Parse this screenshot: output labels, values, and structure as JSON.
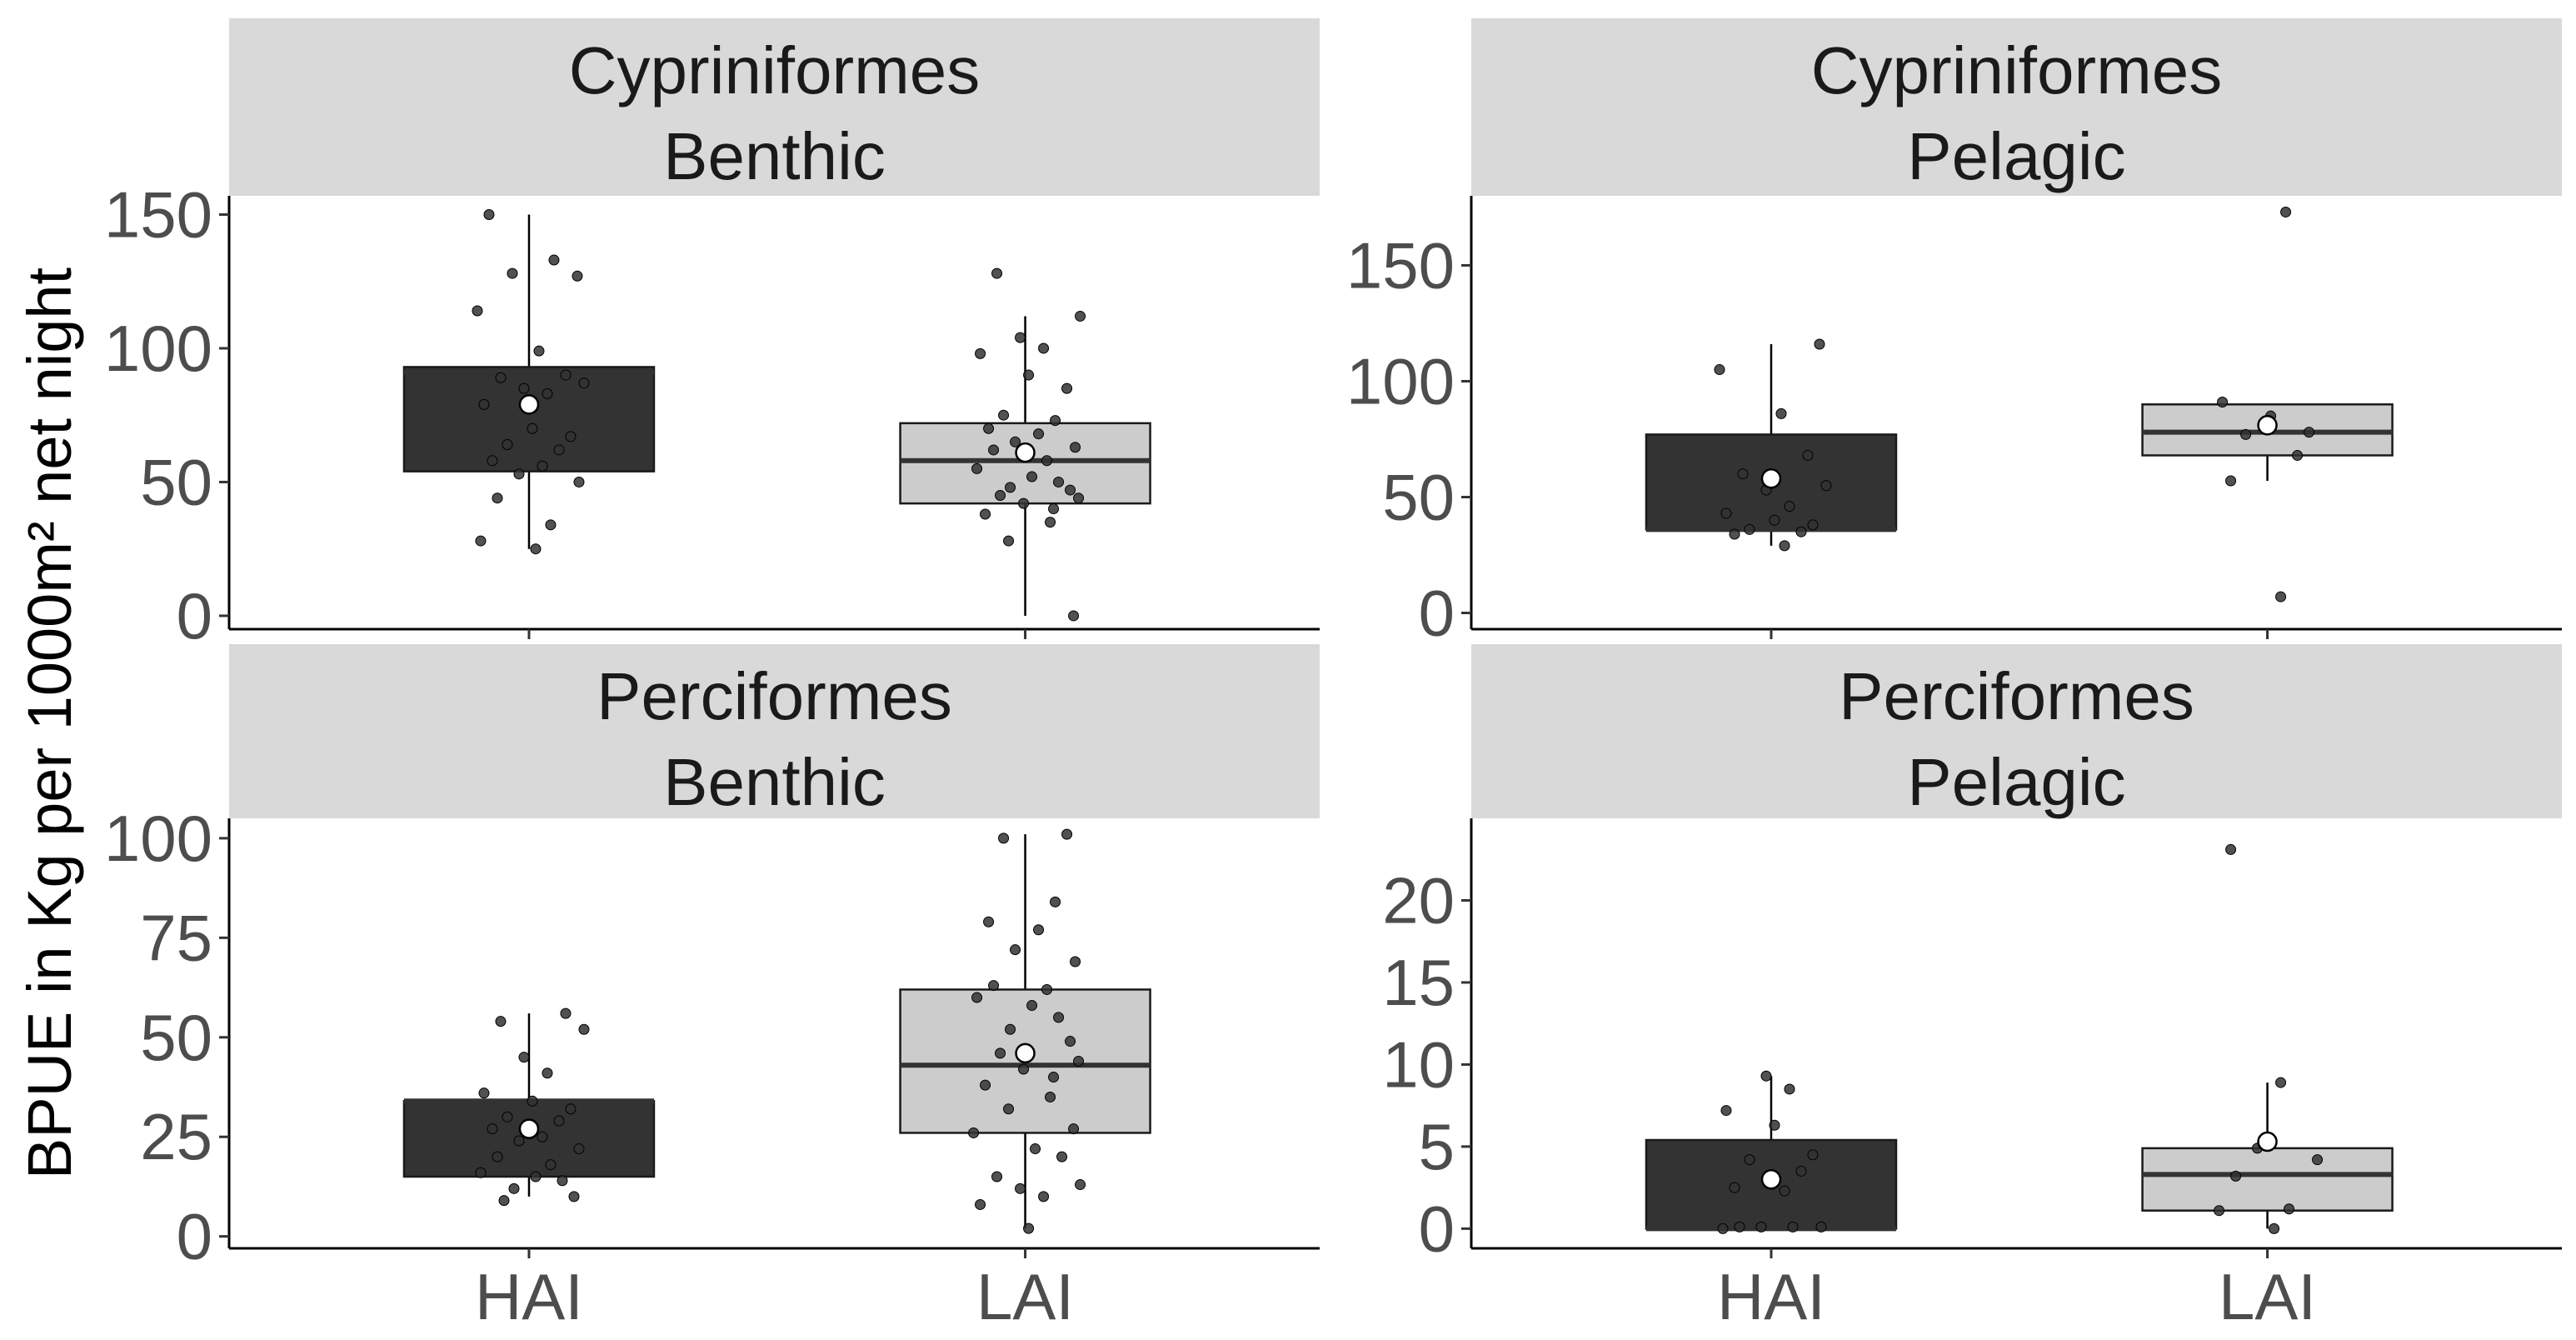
{
  "chart_data": {
    "type": "boxplot",
    "layout": "facet grid 2x2",
    "ylabel": "BPUE in Kg per 1000m² net night",
    "xlabel": "",
    "categories": [
      "HAI",
      "LAI"
    ],
    "fill_colors": {
      "HAI": "#333333",
      "LAI": "#cccccc"
    },
    "mean_marker_color": "#ffffff",
    "point_color": "#333333",
    "facets": [
      {
        "order_label": "Cypriniformes",
        "habitat_label": "Benthic",
        "ylim": [
          -5,
          157
        ],
        "yticks": [
          0,
          50,
          100,
          150
        ],
        "show_x_labels": false,
        "groups": [
          {
            "name": "HAI",
            "q1": 54,
            "median": 91,
            "q3": 93,
            "whisker_low": 25,
            "whisker_high": 150,
            "mean": 79,
            "points": [
              150,
              133,
              128,
              127,
              114,
              99,
              90,
              89,
              87,
              85,
              83,
              79,
              70,
              67,
              64,
              62,
              58,
              56,
              53,
              50,
              44,
              34,
              28,
              25
            ]
          },
          {
            "name": "LAI",
            "q1": 42,
            "median": 58,
            "q3": 72,
            "whisker_low": 0,
            "whisker_high": 112,
            "mean": 61,
            "points": [
              128,
              112,
              104,
              100,
              98,
              90,
              85,
              75,
              73,
              70,
              68,
              65,
              63,
              62,
              58,
              55,
              52,
              50,
              48,
              47,
              45,
              44,
              42,
              40,
              38,
              35,
              28,
              0
            ]
          }
        ]
      },
      {
        "order_label": "Cypriniformes",
        "habitat_label": "Pelagic",
        "ylim": [
          -7,
          180
        ],
        "yticks": [
          0,
          50,
          100,
          150
        ],
        "show_x_labels": false,
        "groups": [
          {
            "name": "HAI",
            "q1": 36,
            "median": 36,
            "q3": 77,
            "whisker_low": 29,
            "whisker_high": 116,
            "mean": 58,
            "points": [
              116,
              105,
              86,
              68,
              60,
              55,
              53,
              46,
              43,
              40,
              38,
              36,
              35,
              34,
              29
            ]
          },
          {
            "name": "LAI",
            "q1": 68,
            "median": 78,
            "q3": 90,
            "whisker_low": 57,
            "whisker_high": 90,
            "mean": 81,
            "points": [
              173,
              91,
              85,
              78,
              77,
              68,
              57,
              7
            ]
          }
        ]
      },
      {
        "order_label": "Perciformes",
        "habitat_label": "Benthic",
        "ylim": [
          -3,
          105
        ],
        "yticks": [
          0,
          25,
          50,
          75,
          100
        ],
        "show_x_labels": true,
        "groups": [
          {
            "name": "HAI",
            "q1": 15,
            "median": 34,
            "q3": 34,
            "whisker_low": 10,
            "whisker_high": 56,
            "mean": 27,
            "points": [
              56,
              54,
              52,
              45,
              41,
              36,
              34,
              32,
              30,
              29,
              27,
              25,
              24,
              22,
              20,
              18,
              16,
              15,
              14,
              12,
              10,
              9
            ]
          },
          {
            "name": "LAI",
            "q1": 26,
            "median": 43,
            "q3": 62,
            "whisker_low": 2,
            "whisker_high": 101,
            "mean": 46,
            "points": [
              101,
              100,
              84,
              79,
              77,
              72,
              69,
              63,
              62,
              60,
              58,
              55,
              52,
              49,
              46,
              44,
              42,
              40,
              38,
              35,
              32,
              27,
              26,
              22,
              20,
              15,
              13,
              12,
              10,
              8,
              2
            ]
          }
        ]
      },
      {
        "order_label": "Perciformes",
        "habitat_label": "Pelagic",
        "ylim": [
          -1.2,
          25
        ],
        "yticks": [
          0,
          5,
          10,
          15,
          20
        ],
        "show_x_labels": true,
        "groups": [
          {
            "name": "HAI",
            "q1": 0,
            "median": 0,
            "q3": 5.4,
            "whisker_low": 0,
            "whisker_high": 9.3,
            "mean": 3,
            "points": [
              9.3,
              8.5,
              7.2,
              6.3,
              4.5,
              4.2,
              3.5,
              2.5,
              2.3,
              0.1,
              0.1,
              0.1,
              0.1,
              0
            ]
          },
          {
            "name": "LAI",
            "q1": 1.1,
            "median": 3.3,
            "q3": 4.9,
            "whisker_low": 0,
            "whisker_high": 8.9,
            "mean": 5.3,
            "points": [
              23.1,
              8.9,
              4.9,
              4.2,
              3.2,
              1.2,
              1.1,
              0
            ]
          }
        ]
      }
    ]
  }
}
